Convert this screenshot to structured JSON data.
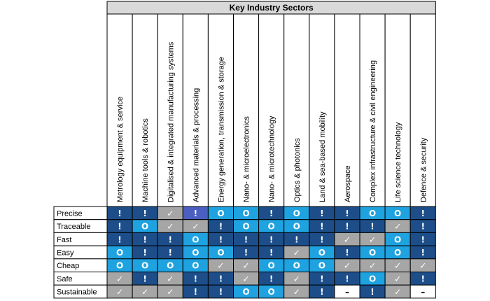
{
  "chart_data": {
    "type": "table",
    "title": "Key Industry Sectors",
    "columns": [
      "Metrology equipment & service",
      "Machine tools & robotics",
      "Digitalised & integrated manufacturing systems",
      "Advanced materials & processing",
      "Energy generation, transmission & storage",
      "Nano- & microelectronics",
      "Nano- & microtechnology",
      "Optics & photonics",
      "Land & sea-based mobility",
      "Aerospace",
      "Complex infrastructure & civil engineering",
      "Life science technology",
      "Defence & security"
    ],
    "rows": [
      {
        "label": "Precise",
        "cells": [
          "!",
          "!",
          "✓",
          "!",
          "O",
          "O",
          "!",
          "O",
          "!",
          "!",
          "O",
          "O",
          "!"
        ]
      },
      {
        "label": "Traceable",
        "cells": [
          "!",
          "O",
          "✓",
          "✓",
          "!",
          "O",
          "O",
          "O",
          "!",
          "!",
          "!",
          "✓",
          "!"
        ]
      },
      {
        "label": "Fast",
        "cells": [
          "!",
          "!",
          "!",
          "O",
          "!",
          "!",
          "!",
          "!",
          "!",
          "✓",
          "✓",
          "O",
          "!"
        ]
      },
      {
        "label": "Easy",
        "cells": [
          "O",
          "!",
          "!",
          "O",
          "O",
          "!",
          "!",
          "✓",
          "O",
          "!",
          "O",
          "O",
          "!"
        ]
      },
      {
        "label": "Cheap",
        "cells": [
          "O",
          "O",
          "O",
          "O",
          "✓",
          "✓",
          "O",
          "O",
          "O",
          "✓",
          "✓",
          "✓",
          "✓"
        ]
      },
      {
        "label": "Safe",
        "cells": [
          "✓",
          "!",
          "✓",
          "!",
          "!",
          "✓",
          "!",
          "✓",
          "!",
          "!",
          "O",
          "✓",
          "!"
        ]
      },
      {
        "label": "Sustainable",
        "cells": [
          "✓",
          "✓",
          "✓",
          "!",
          "!",
          "O",
          "O",
          "✓",
          "!",
          "–",
          "!",
          "✓",
          "–"
        ]
      }
    ],
    "row_fills": [
      [
        "#1d4e89",
        "#1d4e89",
        "#a6a6a6",
        "#4a5fc1",
        "#1fa2e0",
        "#1fa2e0",
        "#1d4e89",
        "#1fa2e0",
        "#1d4e89",
        "#1d4e89",
        "#1fa2e0",
        "#1fa2e0",
        "#1d4e89"
      ],
      [
        "#1d4e89",
        "#1fa2e0",
        "#a6a6a6",
        "#a6a6a6",
        "#1d4e89",
        "#1fa2e0",
        "#1fa2e0",
        "#1fa2e0",
        "#1d4e89",
        "#1d4e89",
        "#1d4e89",
        "#a6a6a6",
        "#1d4e89"
      ],
      [
        "#1d4e89",
        "#1d4e89",
        "#1d4e89",
        "#1fa2e0",
        "#1d4e89",
        "#1d4e89",
        "#1d4e89",
        "#1d4e89",
        "#1d4e89",
        "#a6a6a6",
        "#a6a6a6",
        "#1fa2e0",
        "#1d4e89"
      ],
      [
        "#1fa2e0",
        "#1d4e89",
        "#1d4e89",
        "#1fa2e0",
        "#1fa2e0",
        "#1d4e89",
        "#1d4e89",
        "#a6a6a6",
        "#1fa2e0",
        "#1d4e89",
        "#1fa2e0",
        "#1fa2e0",
        "#1d4e89"
      ],
      [
        "#1fa2e0",
        "#1fa2e0",
        "#1fa2e0",
        "#1fa2e0",
        "#a6a6a6",
        "#a6a6a6",
        "#1fa2e0",
        "#1fa2e0",
        "#1fa2e0",
        "#a6a6a6",
        "#a6a6a6",
        "#a6a6a6",
        "#a6a6a6"
      ],
      [
        "#a6a6a6",
        "#1d4e89",
        "#a6a6a6",
        "#1d4e89",
        "#1d4e89",
        "#a6a6a6",
        "#1d4e89",
        "#a6a6a6",
        "#1d4e89",
        "#1d4e89",
        "#1fa2e0",
        "#a6a6a6",
        "#1d4e89"
      ],
      [
        "#a6a6a6",
        "#a6a6a6",
        "#a6a6a6",
        "#1d4e89",
        "#1d4e89",
        "#1fa2e0",
        "#1fa2e0",
        "#a6a6a6",
        "#1d4e89",
        "#ffffff",
        "#1d4e89",
        "#a6a6a6",
        "#ffffff"
      ]
    ],
    "colors": {
      "dark_blue": "#1d4e89",
      "light_blue": "#1fa2e0",
      "indigo": "#4a5fc1",
      "gray": "#a6a6a6",
      "white": "#ffffff",
      "header_fill": "#d9d9d9"
    }
  }
}
